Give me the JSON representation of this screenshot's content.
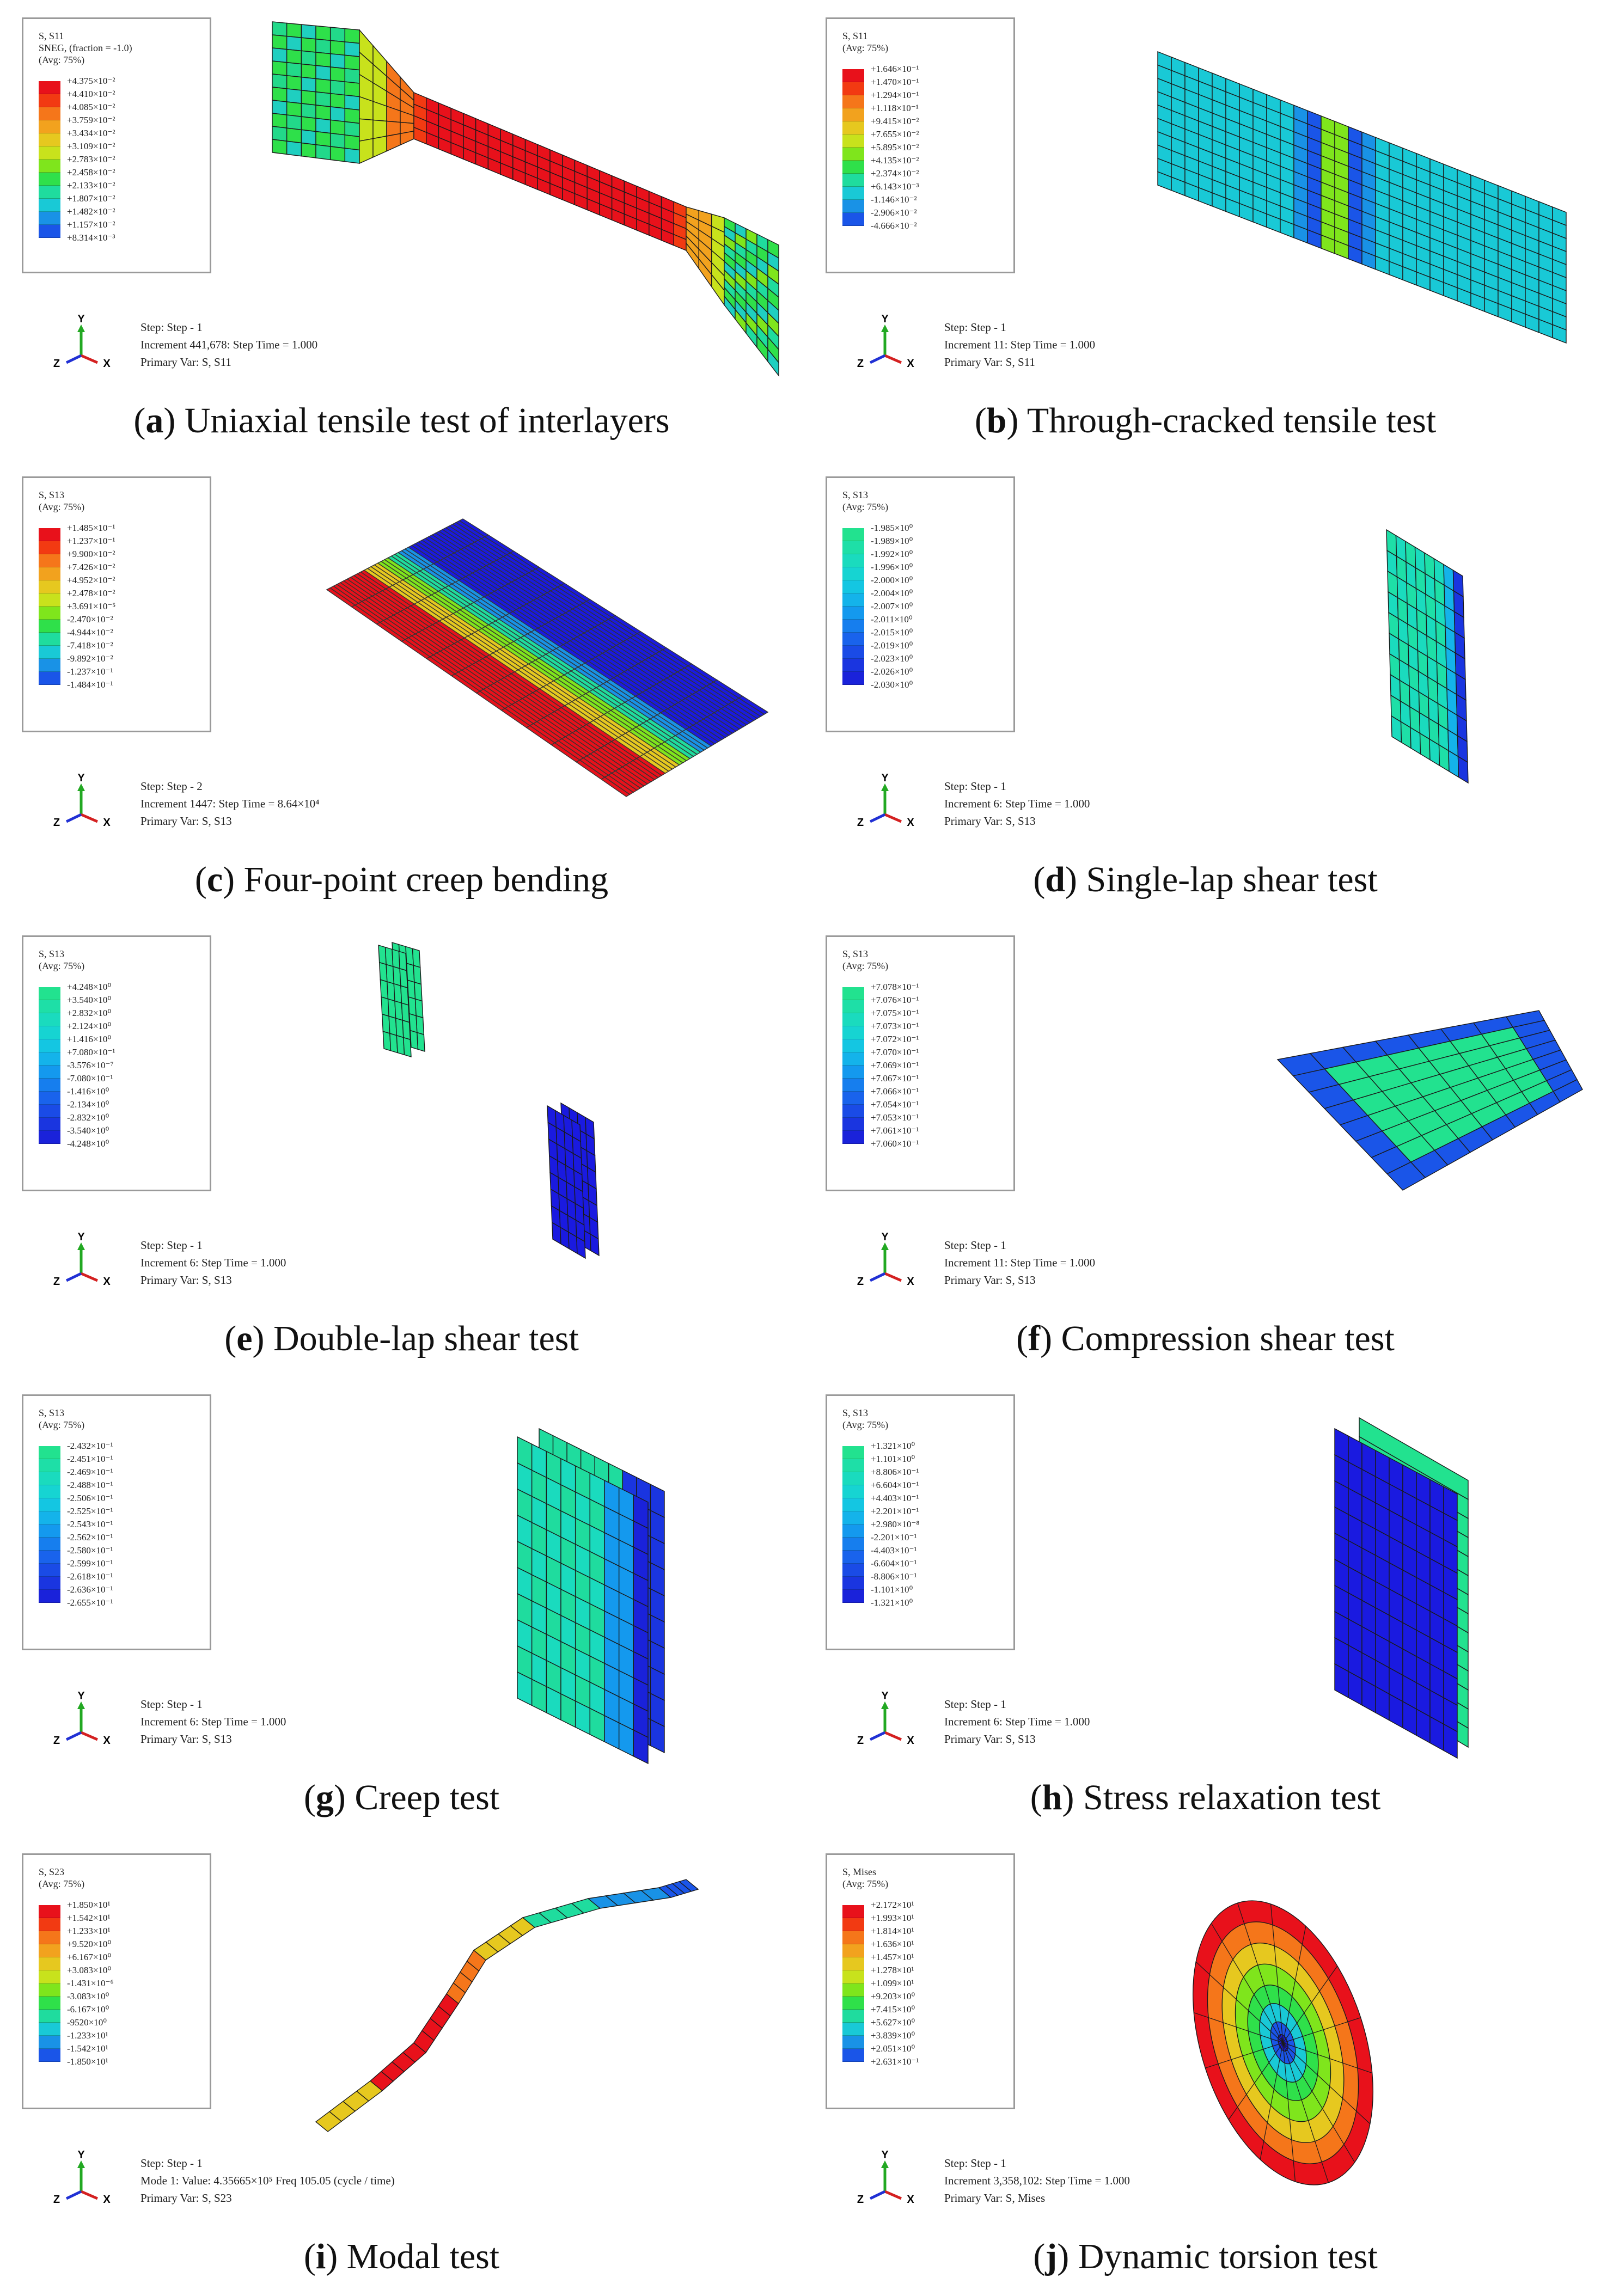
{
  "panels": [
    {
      "id": "a",
      "caption_letter": "a",
      "caption_text": "Uniaxial tensile test of interlayers",
      "legend_title": [
        "S, S11",
        "SNEG, (fraction = -1.0)",
        "(Avg: 75%)"
      ],
      "legend_values": [
        "+4.375×10⁻²",
        "+4.410×10⁻²",
        "+4.085×10⁻²",
        "+3.759×10⁻²",
        "+3.434×10⁻²",
        "+3.109×10⁻²",
        "+2.783×10⁻²",
        "+2.458×10⁻²",
        "+2.133×10⁻²",
        "+1.807×10⁻²",
        "+1.482×10⁻²",
        "+1.157×10⁻²",
        "+8.314×10⁻³"
      ],
      "ramp": "full",
      "step_lines": [
        "Step: Step - 1",
        "Increment 441,678: Step Time = 1.000",
        "Primary Var: S, S11"
      ],
      "model": "dogbone"
    },
    {
      "id": "b",
      "caption_letter": "b",
      "caption_text": "Through-cracked tensile test",
      "legend_title": [
        "S, S11",
        "(Avg: 75%)"
      ],
      "legend_values": [
        "+1.646×10⁻¹",
        "+1.470×10⁻¹",
        "+1.294×10⁻¹",
        "+1.118×10⁻¹",
        "+9.415×10⁻²",
        "+7.655×10⁻²",
        "+5.895×10⁻²",
        "+4.135×10⁻²",
        "+2.374×10⁻²",
        "+6.143×10⁻³",
        "-1.146×10⁻²",
        "-2.906×10⁻²",
        "-4.666×10⁻²"
      ],
      "ramp": "full",
      "step_lines": [
        "Step: Step - 1",
        "Increment 11: Step Time = 1.000",
        "Primary Var: S, S11"
      ],
      "model": "cracked"
    },
    {
      "id": "c",
      "caption_letter": "c",
      "caption_text": "Four-point creep bending",
      "legend_title": [
        "S, S13",
        "(Avg: 75%)"
      ],
      "legend_values": [
        "+1.485×10⁻¹",
        "+1.237×10⁻¹",
        "+9.900×10⁻²",
        "+7.426×10⁻²",
        "+4.952×10⁻²",
        "+2.478×10⁻²",
        "+3.691×10⁻⁵",
        "-2.470×10⁻²",
        "-4.944×10⁻²",
        "-7.418×10⁻²",
        "-9.892×10⁻²",
        "-1.237×10⁻¹",
        "-1.484×10⁻¹"
      ],
      "ramp": "full",
      "step_lines": [
        "Step: Step - 2",
        "Increment 1447: Step Time = 8.64×10⁴",
        "Primary Var: S, S13"
      ],
      "model": "beam"
    },
    {
      "id": "d",
      "caption_letter": "d",
      "caption_text": "Single-lap shear test",
      "legend_title": [
        "S, S13",
        "(Avg: 75%)"
      ],
      "legend_values": [
        "-1.985×10⁰",
        "-1.989×10⁰",
        "-1.992×10⁰",
        "-1.996×10⁰",
        "-2.000×10⁰",
        "-2.004×10⁰",
        "-2.007×10⁰",
        "-2.011×10⁰",
        "-2.015×10⁰",
        "-2.019×10⁰",
        "-2.023×10⁰",
        "-2.026×10⁰",
        "-2.030×10⁰"
      ],
      "ramp": "cool",
      "step_lines": [
        "Step: Step - 1",
        "Increment 6: Step Time = 1.000",
        "Primary Var: S, S13"
      ],
      "model": "singlelap"
    },
    {
      "id": "e",
      "caption_letter": "e",
      "caption_text": "Double-lap shear test",
      "legend_title": [
        "S, S13",
        "(Avg: 75%)"
      ],
      "legend_values": [
        "+4.248×10⁰",
        "+3.540×10⁰",
        "+2.832×10⁰",
        "+2.124×10⁰",
        "+1.416×10⁰",
        "+7.080×10⁻¹",
        "-3.576×10⁻⁷",
        "-7.080×10⁻¹",
        "-1.416×10⁰",
        "-2.134×10⁰",
        "-2.832×10⁰",
        "-3.540×10⁰",
        "-4.248×10⁰"
      ],
      "ramp": "cool",
      "step_lines": [
        "Step: Step - 1",
        "Increment 6: Step Time = 1.000",
        "Primary Var: S, S13"
      ],
      "model": "doublelap"
    },
    {
      "id": "f",
      "caption_letter": "f",
      "caption_text": "Compression shear test",
      "legend_title": [
        "S, S13",
        "(Avg: 75%)"
      ],
      "legend_values": [
        "+7.078×10⁻¹",
        "+7.076×10⁻¹",
        "+7.075×10⁻¹",
        "+7.073×10⁻¹",
        "+7.072×10⁻¹",
        "+7.070×10⁻¹",
        "+7.069×10⁻¹",
        "+7.067×10⁻¹",
        "+7.066×10⁻¹",
        "+7.054×10⁻¹",
        "+7.053×10⁻¹",
        "+7.061×10⁻¹",
        "+7.060×10⁻¹"
      ],
      "ramp": "cool",
      "step_lines": [
        "Step: Step - 1",
        "Increment 11: Step Time = 1.000",
        "Primary Var: S, S13"
      ],
      "model": "plate"
    },
    {
      "id": "g",
      "caption_letter": "g",
      "caption_text": "Creep test",
      "legend_title": [
        "S, S13",
        "(Avg: 75%)"
      ],
      "legend_values": [
        "-2.432×10⁻¹",
        "-2.451×10⁻¹",
        "-2.469×10⁻¹",
        "-2.488×10⁻¹",
        "-2.506×10⁻¹",
        "-2.525×10⁻¹",
        "-2.543×10⁻¹",
        "-2.562×10⁻¹",
        "-2.580×10⁻¹",
        "-2.599×10⁻¹",
        "-2.618×10⁻¹",
        "-2.636×10⁻¹",
        "-2.655×10⁻¹"
      ],
      "ramp": "cool",
      "step_lines": [
        "Step: Step - 1",
        "Increment 6: Step Time = 1.000",
        "Primary Var: S, S13"
      ],
      "model": "creep"
    },
    {
      "id": "h",
      "caption_letter": "h",
      "caption_text": "Stress relaxation test",
      "legend_title": [
        "S, S13",
        "(Avg: 75%)"
      ],
      "legend_values": [
        "+1.321×10⁰",
        "+1.101×10⁰",
        "+8.806×10⁻¹",
        "+6.604×10⁻¹",
        "+4.403×10⁻¹",
        "+2.201×10⁻¹",
        "+2.980×10⁻⁸",
        "-2.201×10⁻¹",
        "-4.403×10⁻¹",
        "-6.604×10⁻¹",
        "-8.806×10⁻¹",
        "-1.101×10⁰",
        "-1.321×10⁰"
      ],
      "ramp": "cool",
      "step_lines": [
        "Step: Step - 1",
        "Increment 6: Step Time = 1.000",
        "Primary Var: S, S13"
      ],
      "model": "relax"
    },
    {
      "id": "i",
      "caption_letter": "i",
      "caption_text": "Modal test",
      "legend_title": [
        "S, S23",
        "(Avg: 75%)"
      ],
      "legend_values": [
        "+1.850×10¹",
        "+1.542×10¹",
        "+1.233×10¹",
        "+9.520×10⁰",
        "+6.167×10⁰",
        "+3.083×10⁰",
        "-1.431×10⁻⁶",
        "-3.083×10⁰",
        "-6.167×10⁰",
        "-9520×10⁰",
        "-1.233×10¹",
        "-1.542×10¹",
        "-1.850×10¹"
      ],
      "ramp": "full",
      "step_lines": [
        "Step: Step - 1",
        "Mode 1:  Value: 4.35665×10⁵  Freq 105.05 (cycle / time)",
        "Primary Var: S, S23"
      ],
      "model": "modal"
    },
    {
      "id": "j",
      "caption_letter": "j",
      "caption_text": "Dynamic torsion test",
      "legend_title": [
        "S, Mises",
        "(Avg: 75%)"
      ],
      "legend_values": [
        "+2.172×10¹",
        "+1.993×10¹",
        "+1.814×10¹",
        "+1.636×10¹",
        "+1.457×10¹",
        "+1.278×10¹",
        "+1.099×10¹",
        "+9.203×10⁰",
        "+7.415×10⁰",
        "+5.627×10⁰",
        "+3.839×10⁰",
        "+2.051×10⁰",
        "+2.631×10⁻¹"
      ],
      "ramp": "full",
      "step_lines": [
        "Step: Step - 1",
        "Increment 3,358,102: Step Time = 1.000",
        "Primary Var: S, Mises"
      ],
      "model": "disk"
    }
  ],
  "axis_labels": {
    "y": "Y",
    "z": "Z",
    "x": "X"
  },
  "colors": {
    "ramp_full": [
      "#e8111b",
      "#f23a12",
      "#f5761a",
      "#f2a21e",
      "#e6c81f",
      "#c8e21c",
      "#7fe51c",
      "#2fe04a",
      "#1fdc9e",
      "#19c9d6",
      "#1992e6",
      "#1a55e8",
      "#1a1ae0"
    ],
    "ramp_cool": [
      "#22e28f",
      "#1edfa7",
      "#1adbbe",
      "#16d4d2",
      "#14c6e2",
      "#14b3ea",
      "#1499ee",
      "#167eee",
      "#1963ec",
      "#1a4be6",
      "#1a35e0",
      "#1a22da",
      "#1714d2"
    ],
    "mesh_line": "#1a1a1a",
    "red": "#e11b1b",
    "green": "#2de06e",
    "blue": "#1a2ee6"
  }
}
